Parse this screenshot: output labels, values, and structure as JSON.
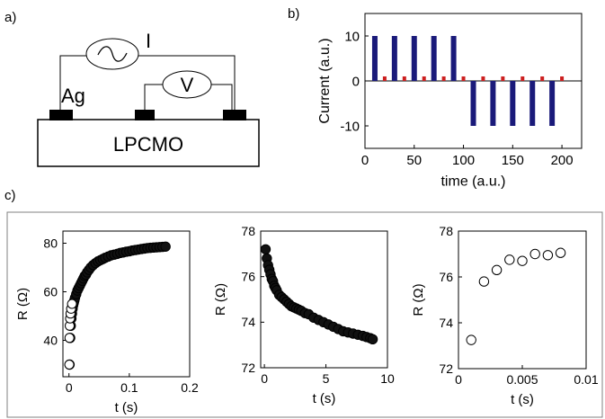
{
  "panel_labels": {
    "a": "a)",
    "b": "b)",
    "c": "c)"
  },
  "schematic": {
    "sample_label": "LPCMO",
    "contact_label": "Ag",
    "current_source_label": "I",
    "voltmeter_label": "V",
    "colors": {
      "contact": "#000000",
      "wire": "#000000"
    }
  },
  "chart_data": [
    {
      "id": "b",
      "type": "bar",
      "xlabel": "time (a.u.)",
      "ylabel": "Current (a.u.)",
      "xlim": [
        0,
        220
      ],
      "ylim": [
        -15,
        15
      ],
      "xticks": [
        0,
        50,
        100,
        150,
        200
      ],
      "yticks": [
        -10,
        0,
        10
      ],
      "series": [
        {
          "color": "#1a1a7a",
          "x": [
            10,
            30,
            50,
            70,
            90,
            110,
            130,
            150,
            170,
            190
          ],
          "values": [
            10,
            10,
            10,
            10,
            10,
            -10,
            -10,
            -10,
            -10,
            -10
          ]
        },
        {
          "color": "#cc1f1f",
          "x": [
            20,
            40,
            60,
            80,
            100,
            120,
            140,
            160,
            180,
            200
          ],
          "values": [
            1,
            1,
            1,
            1,
            1,
            1,
            1,
            1,
            1,
            1
          ]
        }
      ]
    },
    {
      "id": "c1",
      "type": "scatter",
      "xlabel": "t (s)",
      "ylabel": "R (Ω)",
      "xlim": [
        -0.01,
        0.2
      ],
      "ylim": [
        25,
        85
      ],
      "xticks": [
        0,
        0.1,
        0.2
      ],
      "xticklabels": [
        "0",
        "0.1",
        "0.2"
      ],
      "yticks": [
        40,
        60,
        80
      ],
      "marker": "filled",
      "x": [
        0.001,
        0.002,
        0.003,
        0.004,
        0.005,
        0.006,
        0.007,
        0.008,
        0.009,
        0.01,
        0.012,
        0.014,
        0.016,
        0.018,
        0.02,
        0.022,
        0.024,
        0.026,
        0.028,
        0.03,
        0.033,
        0.036,
        0.04,
        0.044,
        0.048,
        0.052,
        0.056,
        0.06,
        0.065,
        0.07,
        0.075,
        0.08,
        0.085,
        0.09,
        0.095,
        0.1,
        0.105,
        0.11,
        0.115,
        0.12,
        0.125,
        0.13,
        0.135,
        0.14,
        0.145,
        0.15,
        0.155,
        0.16
      ],
      "y": [
        30,
        41,
        46,
        49,
        51,
        53,
        54.5,
        55.5,
        56.5,
        57.5,
        59,
        60.5,
        61.5,
        62.5,
        63.5,
        64.5,
        65.5,
        66.5,
        67,
        68,
        69,
        70,
        71,
        71.8,
        72.5,
        73,
        73.5,
        74,
        74.5,
        75,
        75.3,
        75.6,
        76,
        76.2,
        76.5,
        76.7,
        77,
        77.2,
        77.4,
        77.6,
        77.8,
        78,
        78.1,
        78.2,
        78.3,
        78.4,
        78.5,
        78.6
      ]
    },
    {
      "id": "c2",
      "type": "scatter",
      "xlabel": "t (s)",
      "ylabel": "R (Ω)",
      "xlim": [
        -0.3,
        10
      ],
      "ylim": [
        72,
        78
      ],
      "xticks": [
        0,
        5,
        10
      ],
      "xticklabels": [
        "0",
        "5",
        "10"
      ],
      "yticks": [
        72,
        74,
        76,
        78
      ],
      "marker": "filled",
      "x": [
        0.1,
        0.2,
        0.3,
        0.4,
        0.5,
        0.6,
        0.7,
        0.8,
        0.9,
        1,
        1.2,
        1.4,
        1.6,
        1.8,
        2,
        2.2,
        2.4,
        2.6,
        2.8,
        3,
        3.3,
        3.6,
        4,
        4.4,
        4.8,
        5.2,
        5.6,
        6,
        6.4,
        6.8,
        7.2,
        7.6,
        8,
        8.3,
        8.6,
        8.8
      ],
      "y": [
        77.2,
        76.8,
        76.5,
        76.3,
        76.1,
        75.9,
        75.8,
        75.6,
        75.5,
        75.4,
        75.2,
        75.1,
        75,
        74.9,
        74.8,
        74.7,
        74.65,
        74.6,
        74.55,
        74.5,
        74.4,
        74.35,
        74.2,
        74.1,
        74,
        73.9,
        73.8,
        73.7,
        73.6,
        73.55,
        73.5,
        73.45,
        73.4,
        73.35,
        73.3,
        73.25
      ]
    },
    {
      "id": "c3",
      "type": "scatter",
      "xlabel": "t (s)",
      "ylabel": "R (Ω)",
      "xlim": [
        0,
        0.01
      ],
      "ylim": [
        72,
        78
      ],
      "xticks": [
        0,
        0.005,
        0.01
      ],
      "xticklabels": [
        "0",
        "0.005",
        "0.01"
      ],
      "yticks": [
        72,
        74,
        76,
        78
      ],
      "marker": "open",
      "x": [
        0.001,
        0.002,
        0.003,
        0.004,
        0.005,
        0.006,
        0.007,
        0.008
      ],
      "y": [
        73.25,
        75.8,
        76.3,
        76.75,
        76.7,
        77,
        76.95,
        77.05
      ]
    }
  ]
}
